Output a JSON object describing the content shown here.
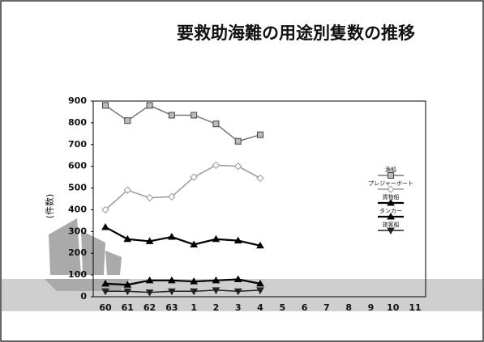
{
  "chart_data": {
    "type": "line",
    "title": "要救助海難の用途別隻数の推移",
    "y_label": "(件数)",
    "categories": [
      "60",
      "61",
      "62",
      "63",
      "1",
      "2",
      "3",
      "4",
      "5",
      "6",
      "7",
      "8",
      "9",
      "10",
      "11"
    ],
    "series": [
      {
        "name": "漁船",
        "color": "#777777",
        "marker": "square",
        "values": [
          880,
          810,
          880,
          835,
          835,
          795,
          715,
          745,
          null,
          null,
          null,
          null,
          null,
          null,
          null
        ]
      },
      {
        "name": "プレジャーボート",
        "color": "#999999",
        "marker": "diamond",
        "values": [
          400,
          490,
          455,
          460,
          550,
          605,
          600,
          545,
          null,
          null,
          null,
          null,
          null,
          null,
          null
        ]
      },
      {
        "name": "貨物船",
        "color": "#000000",
        "marker": "triangle",
        "values": [
          320,
          265,
          255,
          275,
          240,
          265,
          258,
          235,
          null,
          null,
          null,
          null,
          null,
          null,
          null
        ]
      },
      {
        "name": "タンカー",
        "color": "#000000",
        "marker": "triangle",
        "values": [
          60,
          55,
          75,
          75,
          70,
          75,
          80,
          60,
          null,
          null,
          null,
          null,
          null,
          null,
          null
        ]
      },
      {
        "name": "旅客船",
        "color": "#222222",
        "marker": "triangle-down",
        "values": [
          25,
          25,
          20,
          25,
          25,
          30,
          25,
          30,
          null,
          null,
          null,
          null,
          null,
          null,
          null
        ]
      }
    ],
    "ylim": [
      0,
      900
    ],
    "yticks": [
      0,
      100,
      200,
      300,
      400,
      500,
      600,
      700,
      800,
      900
    ],
    "grid": false
  }
}
